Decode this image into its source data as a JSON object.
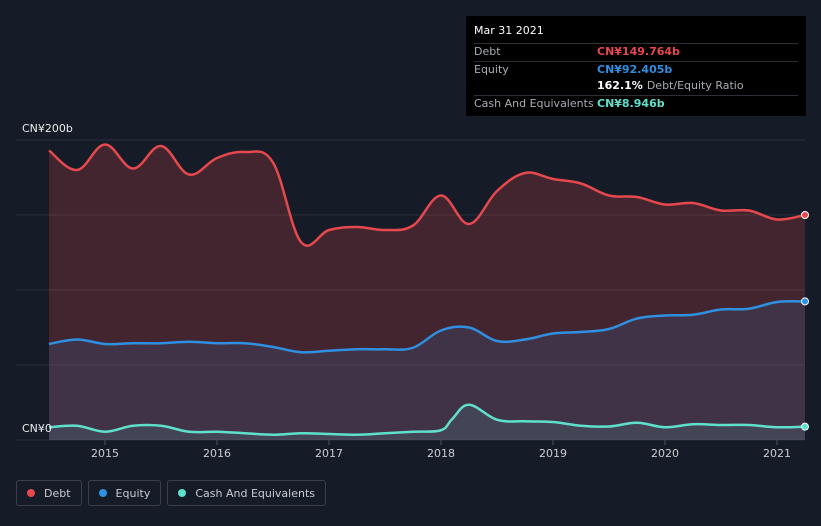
{
  "tooltip": {
    "date": "Mar 31 2021",
    "debt_label": "Debt",
    "debt_value": "CN¥149.764b",
    "equity_label": "Equity",
    "equity_value": "CN¥92.405b",
    "ratio_value": "162.1%",
    "ratio_label": "Debt/Equity Ratio",
    "cash_label": "Cash And Equivalents",
    "cash_value": "CN¥8.946b"
  },
  "legend": [
    {
      "label": "Debt",
      "color": "#e5484d"
    },
    {
      "label": "Equity",
      "color": "#2f8fe0"
    },
    {
      "label": "Cash And Equivalents",
      "color": "#5fe0cc"
    }
  ],
  "chart_data": {
    "type": "area",
    "y_top_label": "CN¥200b",
    "y_bottom_label": "CN¥0",
    "ylim": [
      0,
      200
    ],
    "xlim": [
      2014.5,
      2021.25
    ],
    "x_ticks": [
      "2015",
      "2016",
      "2017",
      "2018",
      "2019",
      "2020",
      "2021"
    ],
    "x_tick_values": [
      2015,
      2016,
      2017,
      2018,
      2019,
      2020,
      2021
    ],
    "grid": true,
    "series": [
      {
        "name": "Debt",
        "color": "#e5484d",
        "x": [
          2014.5,
          2014.75,
          2015.0,
          2015.25,
          2015.5,
          2015.75,
          2016.0,
          2016.25,
          2016.5,
          2016.75,
          2017.0,
          2017.25,
          2017.5,
          2017.75,
          2018.0,
          2018.25,
          2018.5,
          2018.75,
          2019.0,
          2019.25,
          2019.5,
          2019.75,
          2020.0,
          2020.25,
          2020.5,
          2020.75,
          2021.0,
          2021.25
        ],
        "values": [
          193,
          180,
          197,
          181,
          196,
          177,
          188,
          192,
          185,
          132,
          140,
          142,
          140,
          143,
          163,
          144,
          166,
          178,
          174,
          171,
          163,
          162,
          157,
          158,
          153,
          153,
          147,
          150
        ]
      },
      {
        "name": "Equity",
        "color": "#2f8fe0",
        "x": [
          2014.5,
          2014.75,
          2015.0,
          2015.25,
          2015.5,
          2015.75,
          2016.0,
          2016.25,
          2016.5,
          2016.75,
          2017.0,
          2017.25,
          2017.5,
          2017.75,
          2018.0,
          2018.25,
          2018.5,
          2018.75,
          2019.0,
          2019.25,
          2019.5,
          2019.75,
          2020.0,
          2020.25,
          2020.5,
          2020.75,
          2021.0,
          2021.25
        ],
        "values": [
          64,
          67,
          64,
          64.5,
          64.5,
          65.5,
          64.5,
          64.5,
          62,
          58.5,
          59.5,
          60.5,
          60.5,
          61.5,
          73,
          75,
          66,
          67,
          71,
          72,
          74,
          81,
          83,
          83.5,
          87,
          87.5,
          92,
          92.4
        ]
      },
      {
        "name": "Cash And Equivalents",
        "color": "#5fe0cc",
        "x": [
          2014.5,
          2014.75,
          2015.0,
          2015.25,
          2015.5,
          2015.75,
          2016.0,
          2016.25,
          2016.5,
          2016.75,
          2017.0,
          2017.25,
          2017.5,
          2017.75,
          2018.0,
          2018.1,
          2018.25,
          2018.5,
          2018.75,
          2019.0,
          2019.25,
          2019.5,
          2019.75,
          2020.0,
          2020.25,
          2020.5,
          2020.75,
          2021.0,
          2021.25
        ],
        "values": [
          8.5,
          9.5,
          5.5,
          9.5,
          9.5,
          5.5,
          5.5,
          4.5,
          3.5,
          4.5,
          4,
          3.5,
          4.5,
          5.5,
          6.5,
          14,
          23.5,
          13.5,
          12.5,
          12,
          9.5,
          9,
          11.5,
          8.5,
          10.5,
          10,
          10,
          8.5,
          8.9
        ]
      }
    ]
  }
}
